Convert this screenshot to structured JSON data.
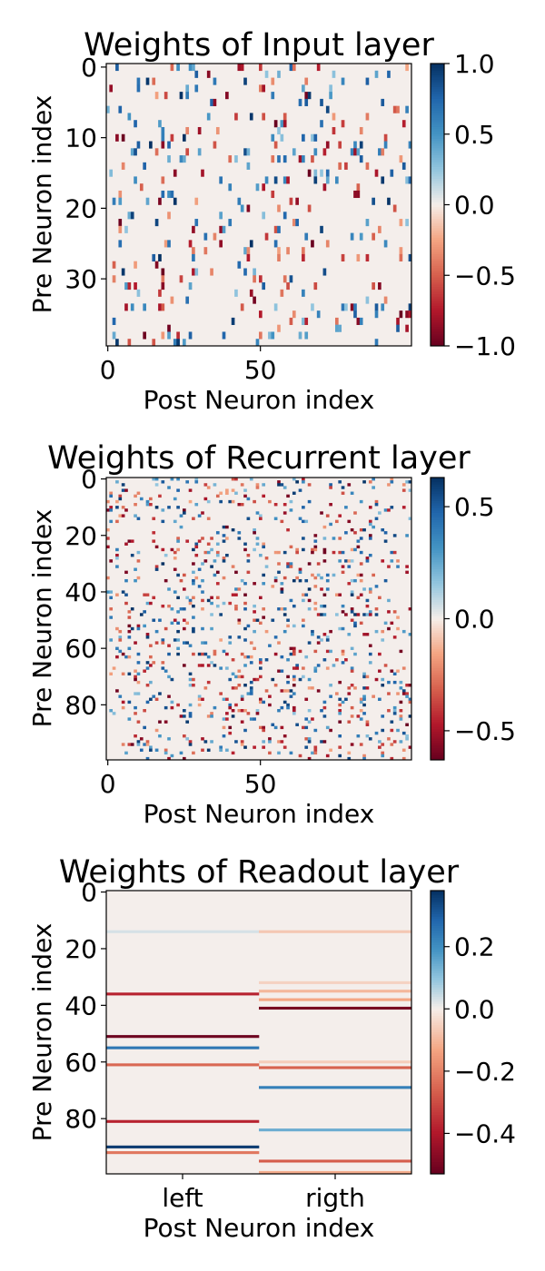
{
  "colors": {
    "cmap": [
      "#67001f",
      "#b2182b",
      "#d6604d",
      "#f4a582",
      "#f5eee9",
      "#92c5de",
      "#4393c3",
      "#2166ac",
      "#053061"
    ],
    "neutral": "#f4eeeb"
  },
  "chart_data": [
    {
      "type": "heatmap",
      "title": "Weights of Input layer",
      "xlabel": "Post Neuron index",
      "ylabel": "Pre Neuron index",
      "rows": 40,
      "cols": 100,
      "xticks": [
        {
          "value": 0,
          "label": "0"
        },
        {
          "value": 50,
          "label": "50"
        }
      ],
      "yticks": [
        {
          "value": 0,
          "label": "0"
        },
        {
          "value": 10,
          "label": "10"
        },
        {
          "value": 20,
          "label": "20"
        },
        {
          "value": 30,
          "label": "30"
        }
      ],
      "vmin": -1.0,
      "vmax": 1.0,
      "colorbar_ticks": [
        {
          "value": 1.0,
          "label": "1.0"
        },
        {
          "value": 0.5,
          "label": "0.5"
        },
        {
          "value": 0.0,
          "label": "0.0"
        },
        {
          "value": -0.5,
          "label": "−0.5"
        },
        {
          "value": -1.0,
          "label": "−1.0"
        }
      ],
      "density": 0.085,
      "seed": 11
    },
    {
      "type": "heatmap",
      "title": "Weights of Recurrent layer",
      "xlabel": "Post Neuron index",
      "ylabel": "Pre Neuron index",
      "rows": 100,
      "cols": 100,
      "xticks": [
        {
          "value": 0,
          "label": "0"
        },
        {
          "value": 50,
          "label": "50"
        }
      ],
      "yticks": [
        {
          "value": 0,
          "label": "0"
        },
        {
          "value": 20,
          "label": "20"
        },
        {
          "value": 40,
          "label": "40"
        },
        {
          "value": 60,
          "label": "60"
        },
        {
          "value": 80,
          "label": "80"
        }
      ],
      "vmin": -0.63,
      "vmax": 0.63,
      "colorbar_ticks": [
        {
          "value": 0.5,
          "label": "0.5"
        },
        {
          "value": 0.0,
          "label": "0.0"
        },
        {
          "value": -0.5,
          "label": "−0.5"
        }
      ],
      "density": 0.1,
      "seed": 29
    },
    {
      "type": "heatmap",
      "title": "Weights of Readout layer",
      "xlabel": "Post Neuron index",
      "ylabel": "Pre Neuron index",
      "rows": 100,
      "cols": 2,
      "xticks": [
        {
          "value": 0,
          "label": "left"
        },
        {
          "value": 1,
          "label": "rigth"
        }
      ],
      "yticks": [
        {
          "value": 0,
          "label": "0"
        },
        {
          "value": 20,
          "label": "20"
        },
        {
          "value": 40,
          "label": "40"
        },
        {
          "value": 60,
          "label": "60"
        },
        {
          "value": 80,
          "label": "80"
        }
      ],
      "vmin": -0.53,
      "vmax": 0.38,
      "colorbar_ticks": [
        {
          "value": 0.2,
          "label": "0.2"
        },
        {
          "value": 0.0,
          "label": "0.0"
        },
        {
          "value": -0.2,
          "label": "−0.2"
        },
        {
          "value": -0.4,
          "label": "−0.4"
        }
      ],
      "nonzero": [
        {
          "row": 14,
          "col": 0,
          "value": 0.03
        },
        {
          "row": 36,
          "col": 0,
          "value": -0.38
        },
        {
          "row": 51,
          "col": 0,
          "value": -0.52
        },
        {
          "row": 55,
          "col": 0,
          "value": 0.25
        },
        {
          "row": 61,
          "col": 0,
          "value": -0.25
        },
        {
          "row": 81,
          "col": 0,
          "value": -0.38
        },
        {
          "row": 90,
          "col": 0,
          "value": 0.36
        },
        {
          "row": 92,
          "col": 0,
          "value": -0.22
        },
        {
          "row": 14,
          "col": 1,
          "value": -0.07
        },
        {
          "row": 32,
          "col": 1,
          "value": -0.05
        },
        {
          "row": 35,
          "col": 1,
          "value": -0.1
        },
        {
          "row": 38,
          "col": 1,
          "value": -0.13
        },
        {
          "row": 41,
          "col": 1,
          "value": -0.5
        },
        {
          "row": 60,
          "col": 1,
          "value": -0.06
        },
        {
          "row": 62,
          "col": 1,
          "value": -0.26
        },
        {
          "row": 69,
          "col": 1,
          "value": 0.23
        },
        {
          "row": 84,
          "col": 1,
          "value": 0.14
        },
        {
          "row": 95,
          "col": 1,
          "value": -0.27
        },
        {
          "row": 99,
          "col": 1,
          "value": -0.12
        }
      ]
    }
  ]
}
